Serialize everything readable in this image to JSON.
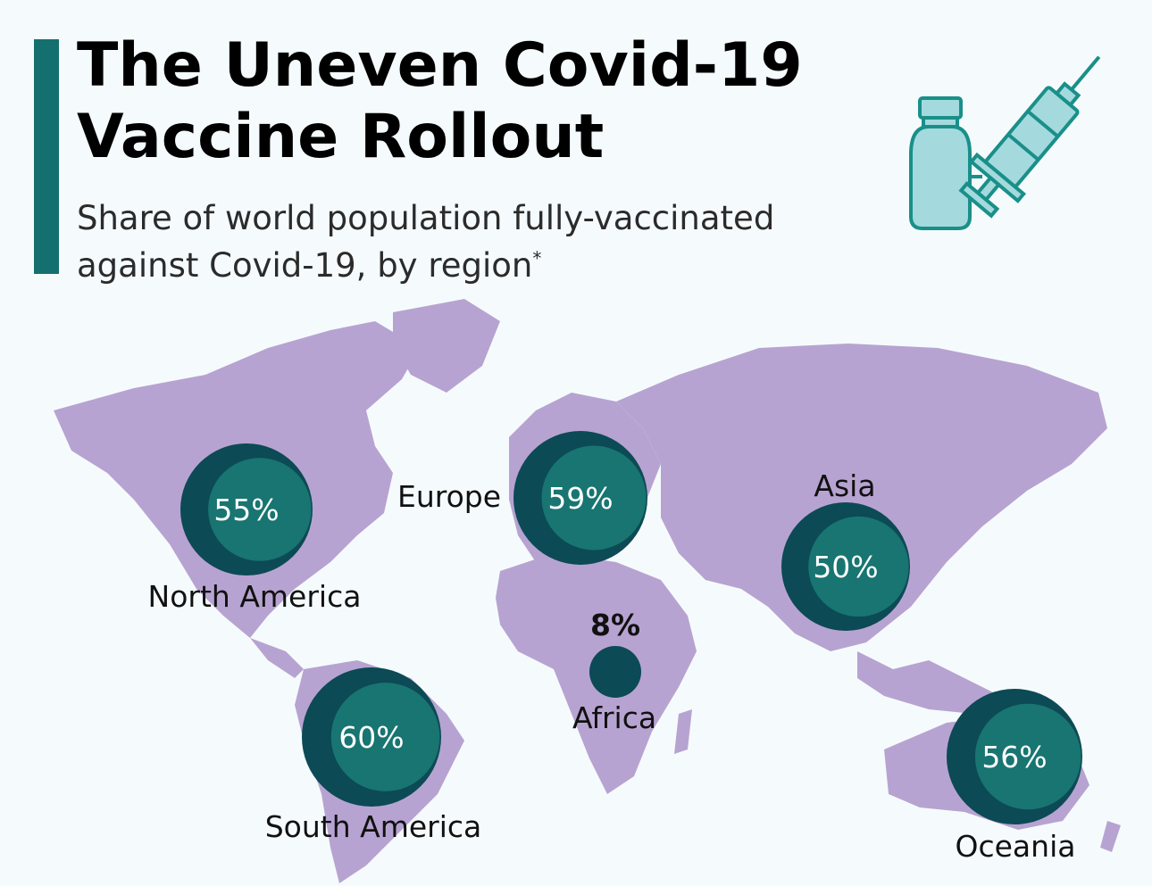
{
  "title": "The Uneven Covid-19 Vaccine Rollout",
  "title_lines": [
    "The Uneven Covid-19",
    "Vaccine Rollout"
  ],
  "subtitle_lines": [
    "Share of world population fully-vaccinated",
    "against Covid-19, by region"
  ],
  "subtitle_footnote_marker": "*",
  "icon": "vaccine-syringe-vial-icon",
  "colors": {
    "accent": "#14706e",
    "land": "#b7a3d1",
    "bubble": "#0c4a55",
    "bubble_highlight": "#1a7a74",
    "background": "#f5fbfc"
  },
  "chart_data": {
    "type": "map-bubble",
    "unit": "%",
    "regions": [
      {
        "name": "North America",
        "value": 55,
        "label": "55%"
      },
      {
        "name": "Europe",
        "value": 59,
        "label": "59%"
      },
      {
        "name": "Asia",
        "value": 50,
        "label": "50%"
      },
      {
        "name": "Africa",
        "value": 8,
        "label": "8%"
      },
      {
        "name": "South America",
        "value": 60,
        "label": "60%"
      },
      {
        "name": "Oceania",
        "value": 56,
        "label": "56%"
      }
    ]
  }
}
